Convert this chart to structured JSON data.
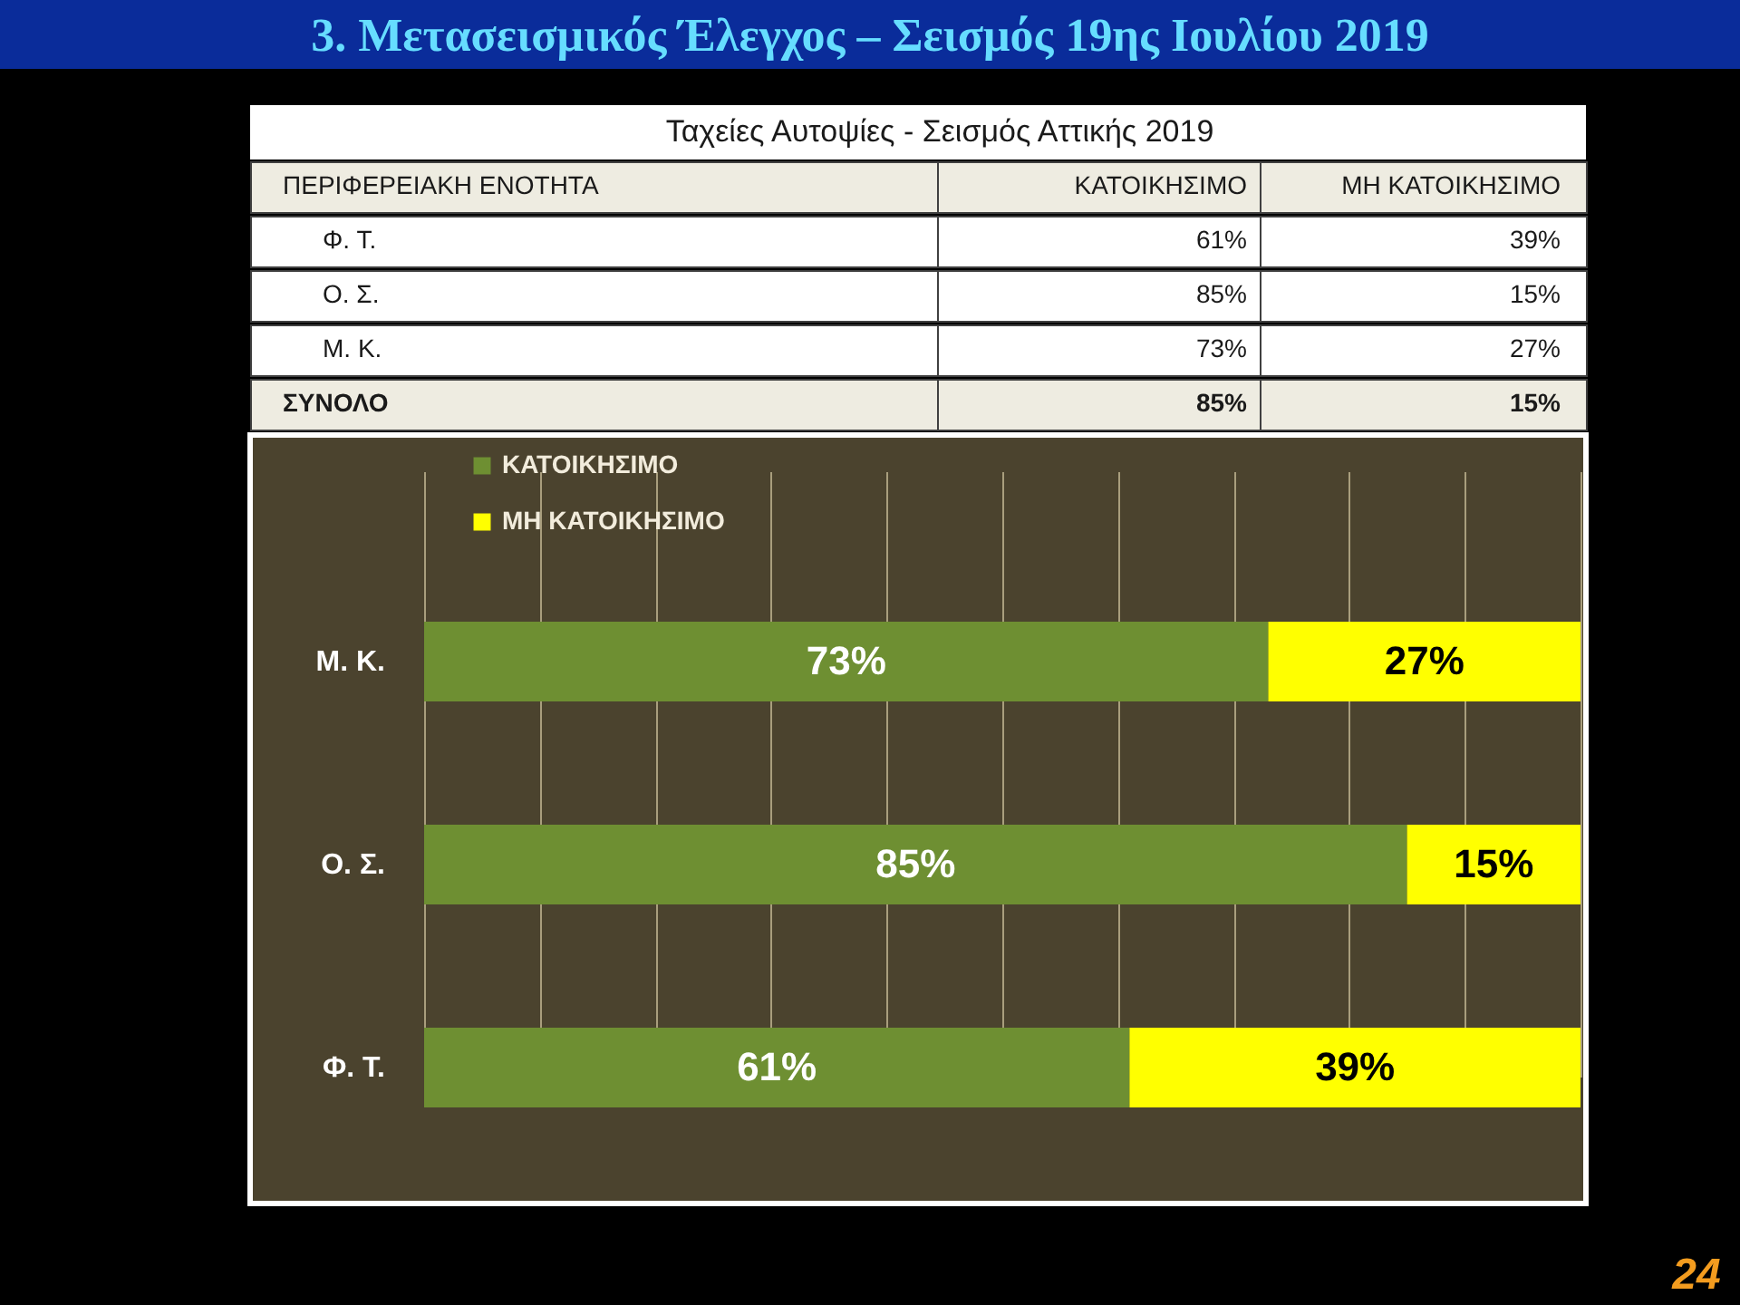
{
  "chart_data": {
    "type": "bar",
    "title": "3. Μετασεισμικός Έλεγχος – Σεισμός 19ης Ιουλίου 2019",
    "subtitle": "Ταχείες Αυτοψίες - Σεισμός Αττικής 2019",
    "orientation": "horizontal",
    "stacked": true,
    "categories": [
      "Μ. Κ.",
      "Ο. Σ.",
      "Φ. Τ."
    ],
    "series": [
      {
        "name": "ΚΑΤΟΙΚΗΣΙΜΟ",
        "color": "#6e8f32",
        "values": [
          73,
          85,
          61
        ],
        "value_labels": [
          "73%",
          "85%",
          "61%"
        ]
      },
      {
        "name": "ΜΗ ΚΑΤΟΙΚΗΣΙΜΟ",
        "color": "#ffff00",
        "values": [
          27,
          15,
          39
        ],
        "value_labels": [
          "27%",
          "15%",
          "39%"
        ]
      }
    ],
    "xlim": [
      0,
      100
    ],
    "xticks": [
      {
        "value": 0,
        "label": null
      },
      {
        "value": 10,
        "label": null
      },
      {
        "value": 20,
        "label": null
      },
      {
        "value": 30,
        "label": null
      },
      {
        "value": 40,
        "label": null
      },
      {
        "value": 50,
        "label": null
      },
      {
        "value": 60,
        "label": null
      },
      {
        "value": 70,
        "label": null
      },
      {
        "value": 80,
        "label": null
      },
      {
        "value": 90,
        "label": null
      },
      {
        "value": 100,
        "label": null
      }
    ],
    "grid": "x",
    "legend": "top left",
    "tick_labels": "y",
    "annotations": [
      "ΠΕΡΙΦΕΡΕΙΑΚΗ ΕΝΟΤΗΤΑ",
      "ΚΑΤΟΙΚΗΣΙΜΟ",
      "ΜΗ ΚΑΤΟΙΚΗΣΙΜΟ",
      "Φ. Τ.",
      "61%",
      "39%",
      "Ο. Σ.",
      "85%",
      "15%",
      "Μ. Κ.",
      "73%",
      "27%",
      "ΣΥΝΟΛΟ",
      "85%",
      "15%",
      "24"
    ]
  }
}
